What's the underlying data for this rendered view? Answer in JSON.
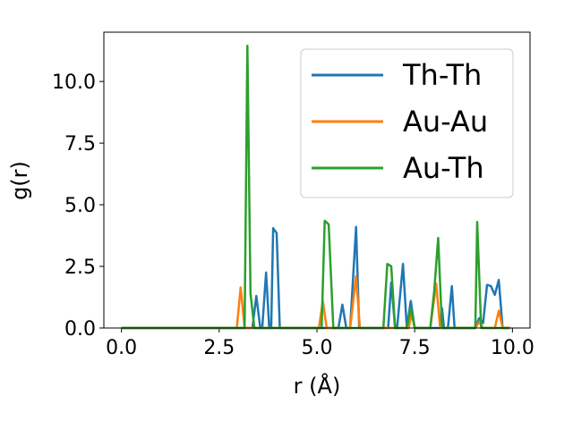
{
  "chart_data": {
    "type": "line",
    "title": "",
    "xlabel": "r (Å)",
    "ylabel": "g(r)",
    "xlim": [
      -0.45,
      10.45
    ],
    "ylim": [
      0,
      12
    ],
    "xticks": [
      0.0,
      2.5,
      5.0,
      7.5,
      10.0
    ],
    "xtick_labels": [
      "0.0",
      "2.5",
      "5.0",
      "7.5",
      "10.0"
    ],
    "yticks": [
      0.0,
      2.5,
      5.0,
      7.5,
      10.0
    ],
    "ytick_labels": [
      "0.0",
      "2.5",
      "5.0",
      "7.5",
      "10.0"
    ],
    "grid": false,
    "legend_position": "top-right",
    "series": [
      {
        "name": "Th-Th",
        "color": "#1f77b4",
        "points": [
          [
            0.0,
            0
          ],
          [
            3.35,
            0
          ],
          [
            3.45,
            1.3
          ],
          [
            3.55,
            0
          ],
          [
            3.6,
            0
          ],
          [
            3.7,
            2.25
          ],
          [
            3.78,
            0
          ],
          [
            3.83,
            0
          ],
          [
            3.88,
            4.05
          ],
          [
            3.97,
            3.85
          ],
          [
            4.05,
            0
          ],
          [
            5.45,
            0
          ],
          [
            5.55,
            0
          ],
          [
            5.65,
            0.95
          ],
          [
            5.75,
            0
          ],
          [
            5.85,
            0
          ],
          [
            6.0,
            4.1
          ],
          [
            6.08,
            0
          ],
          [
            6.12,
            0
          ],
          [
            6.25,
            0
          ],
          [
            6.35,
            0
          ],
          [
            6.45,
            0
          ],
          [
            6.6,
            0
          ],
          [
            6.72,
            0
          ],
          [
            6.82,
            0
          ],
          [
            6.9,
            1.85
          ],
          [
            7.0,
            0
          ],
          [
            7.05,
            0
          ],
          [
            7.2,
            2.6
          ],
          [
            7.3,
            0
          ],
          [
            7.4,
            1.1
          ],
          [
            7.5,
            0
          ],
          [
            7.6,
            0
          ],
          [
            7.7,
            0
          ],
          [
            8.0,
            0
          ],
          [
            8.15,
            0
          ],
          [
            8.2,
            0.8
          ],
          [
            8.25,
            0
          ],
          [
            8.35,
            0
          ],
          [
            8.45,
            1.7
          ],
          [
            8.52,
            0
          ],
          [
            8.95,
            0
          ],
          [
            9.05,
            0
          ],
          [
            9.15,
            0.4
          ],
          [
            9.25,
            0.2
          ],
          [
            9.35,
            1.75
          ],
          [
            9.45,
            1.7
          ],
          [
            9.55,
            1.35
          ],
          [
            9.65,
            1.95
          ],
          [
            9.75,
            0
          ],
          [
            9.95,
            0
          ]
        ]
      },
      {
        "name": "Au-Au",
        "color": "#ff7f0e",
        "points": [
          [
            0.0,
            0
          ],
          [
            2.95,
            0
          ],
          [
            3.05,
            1.65
          ],
          [
            3.15,
            0
          ],
          [
            3.2,
            0
          ],
          [
            3.25,
            0
          ],
          [
            3.35,
            0
          ],
          [
            4.05,
            0
          ],
          [
            5.05,
            0
          ],
          [
            5.15,
            1.1
          ],
          [
            5.25,
            0
          ],
          [
            5.8,
            0
          ],
          [
            5.85,
            0
          ],
          [
            6.0,
            2.1
          ],
          [
            6.1,
            0
          ],
          [
            6.25,
            0
          ],
          [
            7.05,
            0
          ],
          [
            7.15,
            0
          ],
          [
            7.25,
            0
          ],
          [
            7.35,
            0
          ],
          [
            7.42,
            0.6
          ],
          [
            7.5,
            0
          ],
          [
            7.6,
            0
          ],
          [
            7.9,
            0
          ],
          [
            8.05,
            1.8
          ],
          [
            8.15,
            0
          ],
          [
            8.25,
            0
          ],
          [
            9.05,
            0
          ],
          [
            9.15,
            0.25
          ],
          [
            9.25,
            0
          ],
          [
            9.35,
            0
          ],
          [
            9.45,
            0
          ],
          [
            9.55,
            0
          ],
          [
            9.65,
            0.7
          ],
          [
            9.75,
            0
          ],
          [
            9.95,
            0
          ]
        ]
      },
      {
        "name": "Au-Th",
        "color": "#2ca02c",
        "points": [
          [
            0.0,
            0
          ],
          [
            3.05,
            0
          ],
          [
            3.15,
            0
          ],
          [
            3.22,
            11.45
          ],
          [
            3.3,
            1.4
          ],
          [
            3.4,
            0
          ],
          [
            3.5,
            0
          ],
          [
            5.0,
            0
          ],
          [
            5.12,
            0
          ],
          [
            5.2,
            4.35
          ],
          [
            5.3,
            4.2
          ],
          [
            5.42,
            0
          ],
          [
            5.5,
            0
          ],
          [
            6.7,
            0
          ],
          [
            6.8,
            2.6
          ],
          [
            6.9,
            2.5
          ],
          [
            7.0,
            0
          ],
          [
            7.1,
            0
          ],
          [
            7.2,
            0
          ],
          [
            7.3,
            0
          ],
          [
            7.4,
            0.8
          ],
          [
            7.5,
            0
          ],
          [
            7.6,
            0
          ],
          [
            7.9,
            0
          ],
          [
            8.0,
            1.5
          ],
          [
            8.1,
            3.65
          ],
          [
            8.2,
            0
          ],
          [
            8.3,
            0
          ],
          [
            8.95,
            0
          ],
          [
            9.05,
            0
          ],
          [
            9.1,
            4.3
          ],
          [
            9.2,
            0
          ],
          [
            9.3,
            0
          ],
          [
            9.9,
            0
          ]
        ]
      }
    ]
  }
}
